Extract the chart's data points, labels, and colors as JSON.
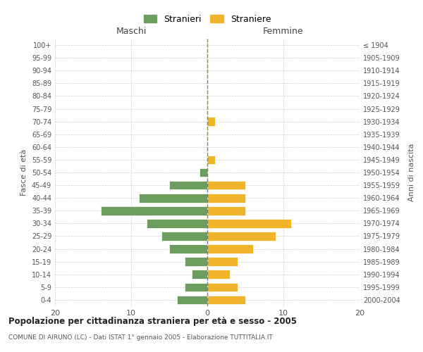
{
  "age_groups": [
    "100+",
    "95-99",
    "90-94",
    "85-89",
    "80-84",
    "75-79",
    "70-74",
    "65-69",
    "60-64",
    "55-59",
    "50-54",
    "45-49",
    "40-44",
    "35-39",
    "30-34",
    "25-29",
    "20-24",
    "15-19",
    "10-14",
    "5-9",
    "0-4"
  ],
  "birth_years": [
    "≤ 1904",
    "1905-1909",
    "1910-1914",
    "1915-1919",
    "1920-1924",
    "1925-1929",
    "1930-1934",
    "1935-1939",
    "1940-1944",
    "1945-1949",
    "1950-1954",
    "1955-1959",
    "1960-1964",
    "1965-1969",
    "1970-1974",
    "1975-1979",
    "1980-1984",
    "1985-1989",
    "1990-1994",
    "1995-1999",
    "2000-2004"
  ],
  "maschi": [
    0,
    0,
    0,
    0,
    0,
    0,
    0,
    0,
    0,
    0,
    1,
    5,
    9,
    14,
    8,
    6,
    5,
    3,
    2,
    3,
    4
  ],
  "femmine": [
    0,
    0,
    0,
    0,
    0,
    0,
    1,
    0,
    0,
    1,
    0,
    5,
    5,
    5,
    11,
    9,
    6,
    4,
    3,
    4,
    5
  ],
  "male_color": "#6b9e5e",
  "female_color": "#f0b429",
  "grid_color": "#cccccc",
  "center_line_color": "#808060",
  "title": "Popolazione per cittadinanza straniera per età e sesso - 2005",
  "subtitle": "COMUNE DI AIRUNO (LC) - Dati ISTAT 1° gennaio 2005 - Elaborazione TUTTITALIA.IT",
  "legend_male": "Stranieri",
  "legend_female": "Straniere",
  "xlabel_left": "Maschi",
  "xlabel_right": "Femmine",
  "ylabel_left": "Fasce di età",
  "ylabel_right": "Anni di nascita",
  "xlim": 20,
  "background_color": "#ffffff"
}
